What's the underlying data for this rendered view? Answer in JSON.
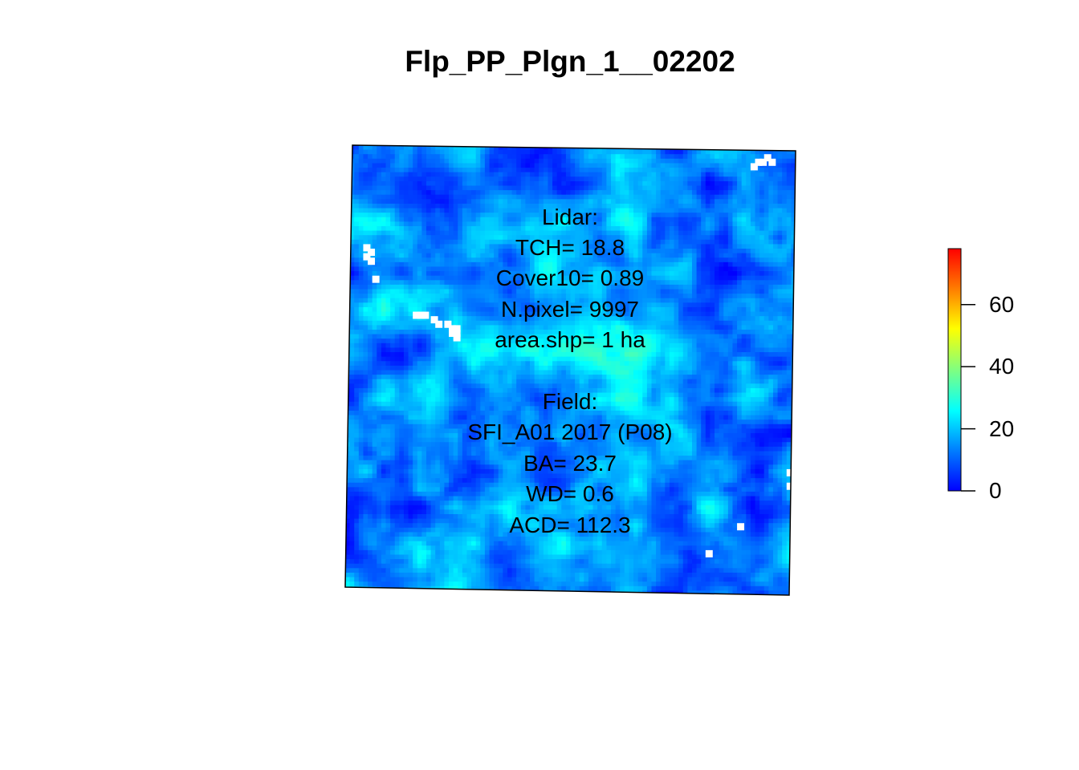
{
  "chart_data": {
    "type": "heatmap",
    "title": "Flp_PP_Plgn_1__02202",
    "lidar": {
      "header": "Lidar:",
      "tch": "TCH= 18.8",
      "cover10": "Cover10= 0.89",
      "npixel": "N.pixel= 9997",
      "area": "area.shp= 1 ha"
    },
    "field": {
      "header": "Field:",
      "plot": "SFI_A01 2017 (P08)",
      "ba": "BA= 23.7",
      "wd": "WD= 0.6",
      "acd": "ACD= 112.3"
    },
    "colorbar": {
      "range": [
        0,
        78
      ],
      "ticks": [
        "0",
        "20",
        "40",
        "60"
      ],
      "tick_values": [
        0,
        20,
        40,
        60
      ],
      "colors": [
        "#0000ff",
        "#0080ff",
        "#00ffff",
        "#80ff80",
        "#ffff00",
        "#ff8000",
        "#ff0000"
      ]
    },
    "grid": {
      "rows": 100,
      "cols": 100,
      "value_range": [
        0,
        34
      ],
      "missing_patches": "white pixels near left edge (upper), small cluster upper-left centre, top-right corner, lower-right"
    }
  }
}
